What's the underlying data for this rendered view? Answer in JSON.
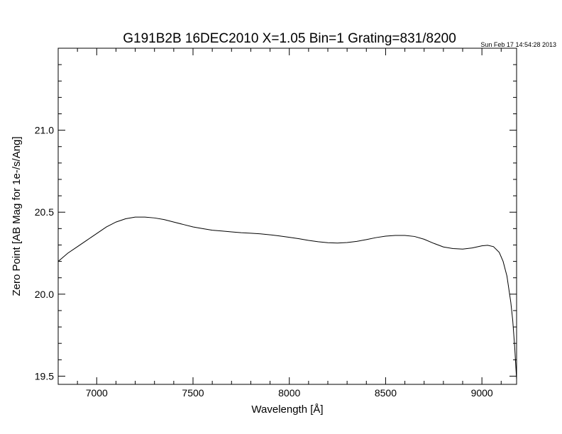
{
  "chart_data": {
    "type": "line",
    "title": "G191B2B 16DEC2010 X=1.05 Bin=1 Grating=831/8200",
    "timestamp": "Sun Feb 17 14:54:28 2013",
    "xlabel": "Wavelength [Å]",
    "ylabel": "Zero Point [AB Mag for 1e-/s/Ang]",
    "xlim": [
      6800,
      9180
    ],
    "ylim": [
      19.45,
      21.5
    ],
    "x_ticks": [
      7000,
      7500,
      8000,
      8500,
      9000
    ],
    "x_tick_labels": [
      "7000",
      "7500",
      "8000",
      "8500",
      "9000"
    ],
    "y_ticks": [
      19.5,
      20.0,
      20.5,
      21.0
    ],
    "y_tick_labels": [
      "19.5",
      "20.0",
      "20.5",
      "21.0"
    ],
    "grid": false,
    "line_color": "#000000",
    "series": [
      {
        "x": [
          6800,
          6850,
          6900,
          6950,
          7000,
          7050,
          7100,
          7150,
          7200,
          7250,
          7300,
          7350,
          7400,
          7450,
          7500,
          7550,
          7600,
          7650,
          7700,
          7750,
          7800,
          7850,
          7900,
          7950,
          8000,
          8050,
          8100,
          8150,
          8200,
          8250,
          8300,
          8350,
          8400,
          8450,
          8500,
          8550,
          8600,
          8650,
          8700,
          8750,
          8800,
          8850,
          8900,
          8950,
          9000,
          9030,
          9060,
          9090,
          9110,
          9130,
          9150,
          9160,
          9170,
          9180
        ],
        "y": [
          20.2,
          20.25,
          20.29,
          20.33,
          20.37,
          20.41,
          20.44,
          20.46,
          20.47,
          20.47,
          20.465,
          20.455,
          20.44,
          20.425,
          20.41,
          20.4,
          20.39,
          20.385,
          20.38,
          20.375,
          20.372,
          20.368,
          20.362,
          20.355,
          20.347,
          20.338,
          20.328,
          20.32,
          20.314,
          20.312,
          20.315,
          20.322,
          20.333,
          20.345,
          20.354,
          20.358,
          20.358,
          20.352,
          20.335,
          20.31,
          20.288,
          20.278,
          20.275,
          20.282,
          20.295,
          20.298,
          20.29,
          20.255,
          20.2,
          20.11,
          19.95,
          19.84,
          19.68,
          19.48
        ]
      }
    ]
  }
}
